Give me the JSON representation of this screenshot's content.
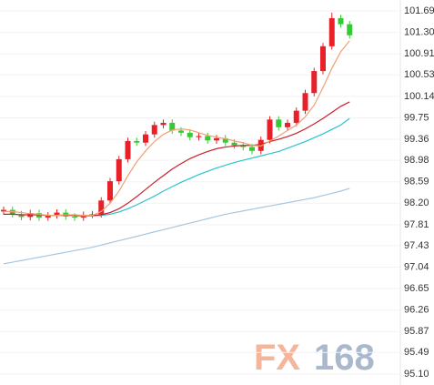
{
  "chart_data": {
    "type": "candlestick",
    "ylim": [
      94.9,
      101.89
    ],
    "yticks": [
      101.69,
      {
        "value": 101.3,
        "label": "101.30"
      },
      100.91,
      100.53,
      100.14,
      99.75,
      99.36,
      98.98,
      98.59,
      {
        "value": 98.2,
        "label": "98.20"
      },
      97.81,
      97.43,
      97.04,
      96.65,
      96.26,
      95.87,
      95.49,
      {
        "value": 95.1,
        "label": "95.10"
      }
    ],
    "grid": true,
    "up_color": "#e8202a",
    "down_color": "#36c936",
    "open": [
      98.05,
      98.08,
      98.0,
      97.95,
      98.02,
      97.94,
      97.98,
      98.03,
      97.96,
      97.94,
      97.99,
      98.0,
      98.25,
      98.6,
      99.0,
      99.33,
      99.3,
      99.45,
      99.62,
      99.66,
      99.52,
      99.48,
      99.4,
      99.42,
      99.34,
      99.38,
      99.3,
      99.25,
      99.22,
      99.15,
      99.35,
      99.72,
      99.58,
      99.66,
      99.88,
      100.2,
      100.6,
      101.05,
      101.56,
      101.45
    ],
    "high": [
      98.14,
      98.14,
      98.06,
      98.08,
      98.08,
      98.04,
      98.09,
      98.09,
      98.02,
      98.05,
      98.06,
      98.31,
      98.66,
      99.06,
      99.39,
      99.39,
      99.51,
      99.68,
      99.72,
      99.72,
      99.58,
      99.54,
      99.48,
      99.48,
      99.44,
      99.44,
      99.36,
      99.31,
      99.28,
      99.41,
      99.78,
      99.78,
      99.72,
      99.94,
      100.26,
      100.66,
      101.11,
      101.66,
      101.62,
      101.51
    ],
    "low": [
      97.99,
      97.94,
      97.89,
      97.89,
      97.88,
      97.88,
      97.92,
      97.9,
      97.88,
      97.88,
      97.93,
      97.94,
      98.19,
      98.54,
      98.94,
      99.24,
      99.24,
      99.39,
      99.56,
      99.46,
      99.42,
      99.34,
      99.34,
      99.28,
      99.28,
      99.24,
      99.19,
      99.16,
      99.09,
      99.09,
      99.29,
      99.52,
      99.52,
      99.6,
      99.82,
      100.14,
      100.54,
      100.99,
      101.39,
      101.19
    ],
    "close": [
      98.08,
      98.0,
      97.95,
      98.02,
      97.94,
      97.98,
      98.03,
      97.96,
      97.94,
      97.99,
      98.0,
      98.25,
      98.6,
      99.0,
      99.33,
      99.3,
      99.45,
      99.62,
      99.66,
      99.52,
      99.48,
      99.4,
      99.42,
      99.34,
      99.38,
      99.3,
      99.25,
      99.22,
      99.15,
      99.35,
      99.72,
      99.58,
      99.66,
      99.88,
      100.2,
      100.6,
      101.05,
      101.56,
      101.45,
      101.25
    ],
    "moving_averages": [
      {
        "color": "#a7c6e0",
        "values": [
          97.1,
          97.13,
          97.16,
          97.19,
          97.22,
          97.25,
          97.28,
          97.31,
          97.34,
          97.37,
          97.4,
          97.44,
          97.48,
          97.52,
          97.56,
          97.6,
          97.64,
          97.68,
          97.72,
          97.76,
          97.8,
          97.84,
          97.88,
          97.92,
          97.96,
          98.0,
          98.03,
          98.06,
          98.09,
          98.12,
          98.15,
          98.18,
          98.21,
          98.24,
          98.27,
          98.3,
          98.34,
          98.38,
          98.42,
          98.47
        ]
      },
      {
        "color": "#2cc3c9",
        "values": [
          null,
          null,
          null,
          null,
          null,
          null,
          null,
          null,
          97.97,
          97.97,
          97.97,
          97.98,
          98.0,
          98.04,
          98.1,
          98.17,
          98.25,
          98.33,
          98.42,
          98.5,
          98.58,
          98.65,
          98.72,
          98.78,
          98.84,
          98.89,
          98.94,
          98.98,
          99.02,
          99.06,
          99.1,
          99.14,
          99.2,
          99.26,
          99.32,
          99.39,
          99.46,
          99.54,
          99.62,
          99.74
        ]
      },
      {
        "color": "#c8202a",
        "values": [
          98.0,
          98.0,
          97.99,
          97.99,
          97.99,
          97.98,
          97.98,
          97.98,
          97.98,
          97.98,
          97.98,
          97.99,
          98.03,
          98.1,
          98.2,
          98.32,
          98.45,
          98.58,
          98.7,
          98.82,
          98.92,
          99.01,
          99.08,
          99.14,
          99.19,
          99.22,
          99.24,
          99.25,
          99.25,
          99.27,
          99.32,
          99.36,
          99.41,
          99.47,
          99.55,
          99.64,
          99.74,
          99.85,
          99.96,
          100.04
        ]
      },
      {
        "color": "#f0a070",
        "values": [
          98.05,
          98.05,
          98.03,
          98.01,
          98.0,
          97.98,
          97.98,
          97.99,
          97.99,
          97.98,
          97.98,
          98.05,
          98.2,
          98.42,
          98.7,
          98.95,
          99.15,
          99.32,
          99.45,
          99.53,
          99.55,
          99.53,
          99.48,
          99.43,
          99.4,
          99.37,
          99.33,
          99.3,
          99.25,
          99.24,
          99.33,
          99.42,
          99.52,
          99.62,
          99.77,
          99.98,
          100.3,
          100.65,
          100.95,
          101.15
        ]
      }
    ],
    "watermark": [
      {
        "text": "FX",
        "color": "#f4b59a"
      },
      {
        "text": "168",
        "color": "#a9b8cc"
      }
    ]
  }
}
